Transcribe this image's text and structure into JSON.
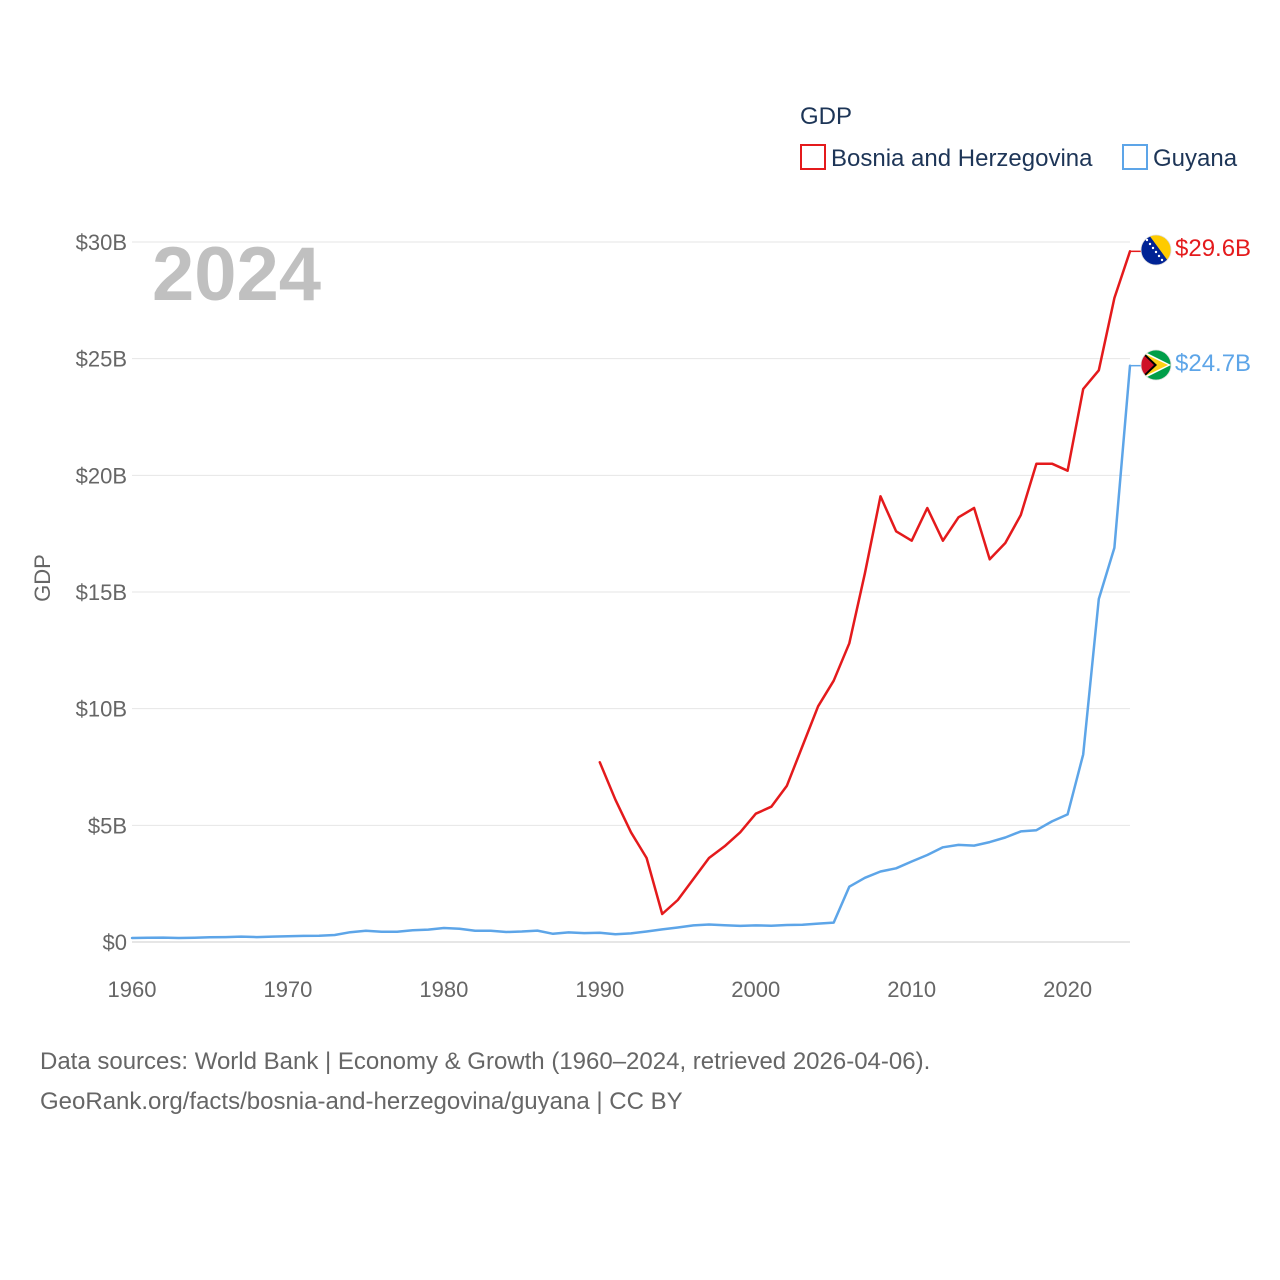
{
  "chart_data": {
    "type": "line",
    "legend_title": "GDP",
    "year_label": "2024",
    "ylabel": "GDP",
    "ylim": [
      0,
      30
    ],
    "xlim": [
      1960,
      2024
    ],
    "y_ticks": [
      {
        "value": 0,
        "label": "$0"
      },
      {
        "value": 5,
        "label": "$5B"
      },
      {
        "value": 10,
        "label": "$10B"
      },
      {
        "value": 15,
        "label": "$15B"
      },
      {
        "value": 20,
        "label": "$20B"
      },
      {
        "value": 25,
        "label": "$25B"
      },
      {
        "value": 30,
        "label": "$30B"
      }
    ],
    "x_ticks": [
      {
        "value": 1960,
        "label": "1960"
      },
      {
        "value": 1970,
        "label": "1970"
      },
      {
        "value": 1980,
        "label": "1980"
      },
      {
        "value": 1990,
        "label": "1990"
      },
      {
        "value": 2000,
        "label": "2000"
      },
      {
        "value": 2010,
        "label": "2010"
      },
      {
        "value": 2020,
        "label": "2020"
      }
    ],
    "series": [
      {
        "name": "Bosnia and Herzegovina",
        "color": "#e41a1c",
        "end_label": "$29.6B",
        "flag": "bosnia-flag-icon",
        "x": [
          1990,
          1991,
          1992,
          1993,
          1994,
          1995,
          1996,
          1997,
          1998,
          1999,
          2000,
          2001,
          2002,
          2003,
          2004,
          2005,
          2006,
          2007,
          2008,
          2009,
          2010,
          2011,
          2012,
          2013,
          2014,
          2015,
          2016,
          2017,
          2018,
          2019,
          2020,
          2021,
          2022,
          2023,
          2024
        ],
        "values": [
          7.7,
          6.1,
          4.7,
          3.6,
          1.2,
          1.8,
          2.7,
          3.6,
          4.1,
          4.7,
          5.5,
          5.8,
          6.7,
          8.4,
          10.1,
          11.2,
          12.8,
          15.8,
          19.1,
          17.6,
          17.2,
          18.6,
          17.2,
          18.2,
          18.6,
          16.4,
          17.1,
          18.3,
          20.5,
          20.5,
          20.2,
          23.7,
          24.5,
          27.6,
          29.6
        ]
      },
      {
        "name": "Guyana",
        "color": "#5da5e8",
        "end_label": "$24.7B",
        "flag": "guyana-flag-icon",
        "x": [
          1960,
          1961,
          1962,
          1963,
          1964,
          1965,
          1966,
          1967,
          1968,
          1969,
          1970,
          1971,
          1972,
          1973,
          1974,
          1975,
          1976,
          1977,
          1978,
          1979,
          1980,
          1981,
          1982,
          1983,
          1984,
          1985,
          1986,
          1987,
          1988,
          1989,
          1990,
          1991,
          1992,
          1993,
          1994,
          1995,
          1996,
          1997,
          1998,
          1999,
          2000,
          2001,
          2002,
          2003,
          2004,
          2005,
          2006,
          2007,
          2008,
          2009,
          2010,
          2011,
          2012,
          2013,
          2014,
          2015,
          2016,
          2017,
          2018,
          2019,
          2020,
          2021,
          2022,
          2023,
          2024
        ],
        "values": [
          0.17,
          0.18,
          0.19,
          0.17,
          0.18,
          0.2,
          0.21,
          0.23,
          0.21,
          0.23,
          0.25,
          0.26,
          0.27,
          0.3,
          0.42,
          0.48,
          0.44,
          0.44,
          0.5,
          0.53,
          0.6,
          0.57,
          0.48,
          0.48,
          0.43,
          0.45,
          0.49,
          0.35,
          0.41,
          0.38,
          0.4,
          0.33,
          0.37,
          0.45,
          0.54,
          0.62,
          0.71,
          0.75,
          0.72,
          0.69,
          0.71,
          0.7,
          0.73,
          0.74,
          0.79,
          0.83,
          2.37,
          2.75,
          3.02,
          3.16,
          3.45,
          3.73,
          4.06,
          4.16,
          4.13,
          4.28,
          4.48,
          4.74,
          4.79,
          5.17,
          5.47,
          8.04,
          14.7,
          16.9,
          24.7
        ]
      }
    ]
  },
  "source": {
    "line1": "Data sources: World Bank | Economy & Growth (1960–2024, retrieved 2026-04-06).",
    "line2": "GeoRank.org/facts/bosnia-and-herzegovina/guyana | CC BY"
  }
}
